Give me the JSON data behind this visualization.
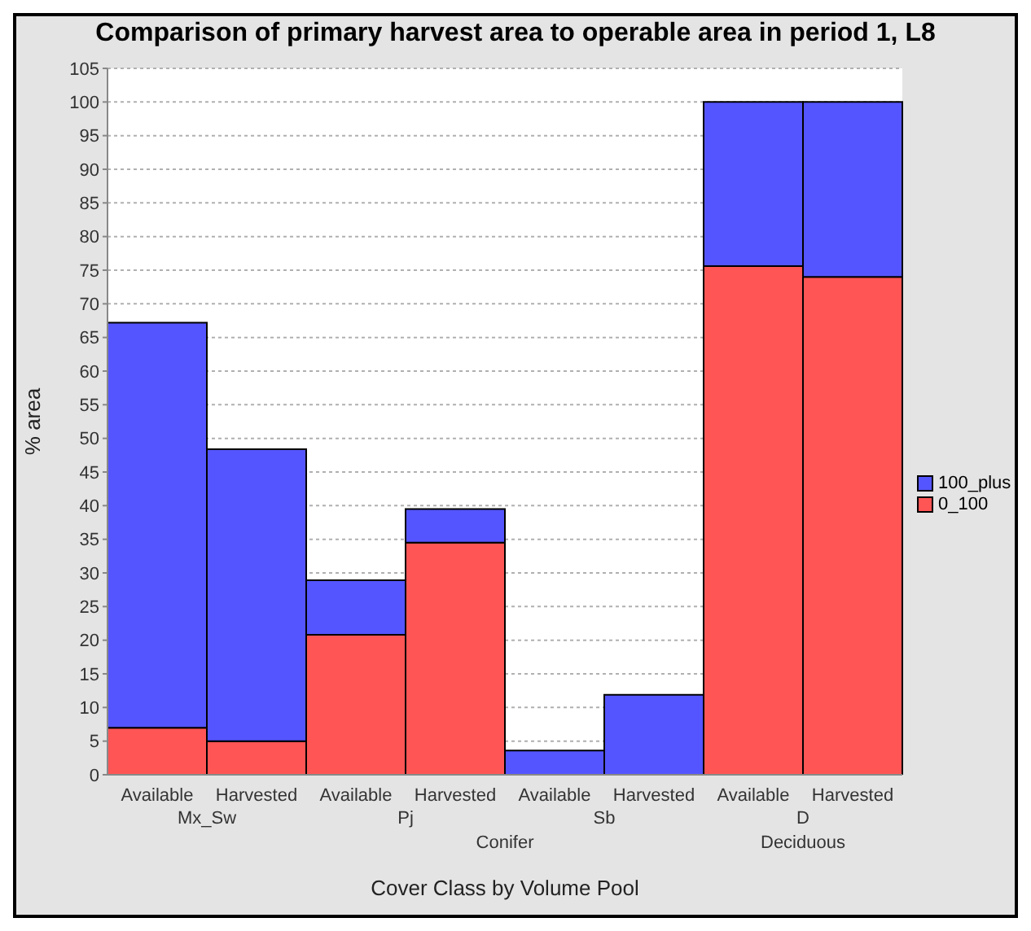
{
  "chart_data": {
    "type": "bar",
    "title": "Comparison of primary harvest area to operable area in period 1, L8",
    "xlabel": "Cover Class by Volume Pool",
    "ylabel": "% area",
    "categories": [
      "Available",
      "Harvested",
      "Available",
      "Harvested",
      "Available",
      "Harvested",
      "Available",
      "Harvested"
    ],
    "annotations": [
      "Mx_Sw",
      "Pj",
      "Sb",
      "D",
      "Conifer",
      "Deciduous"
    ],
    "stacked": true,
    "series": [
      {
        "name": "0_100",
        "color": "#ff5555",
        "values": [
          7,
          5,
          20.8,
          34.5,
          0,
          0,
          75.6,
          74
        ]
      },
      {
        "name": "100_plus",
        "color": "#5555ff",
        "values": [
          60.2,
          43.4,
          8.1,
          5,
          3.6,
          11.9,
          24.4,
          26
        ]
      }
    ],
    "ylim": [
      0,
      105
    ],
    "yticks": [
      0,
      5,
      10,
      15,
      20,
      25,
      30,
      35,
      40,
      45,
      50,
      55,
      60,
      65,
      70,
      75,
      80,
      85,
      90,
      95,
      100,
      105
    ],
    "grid": "y",
    "legend": "right"
  }
}
